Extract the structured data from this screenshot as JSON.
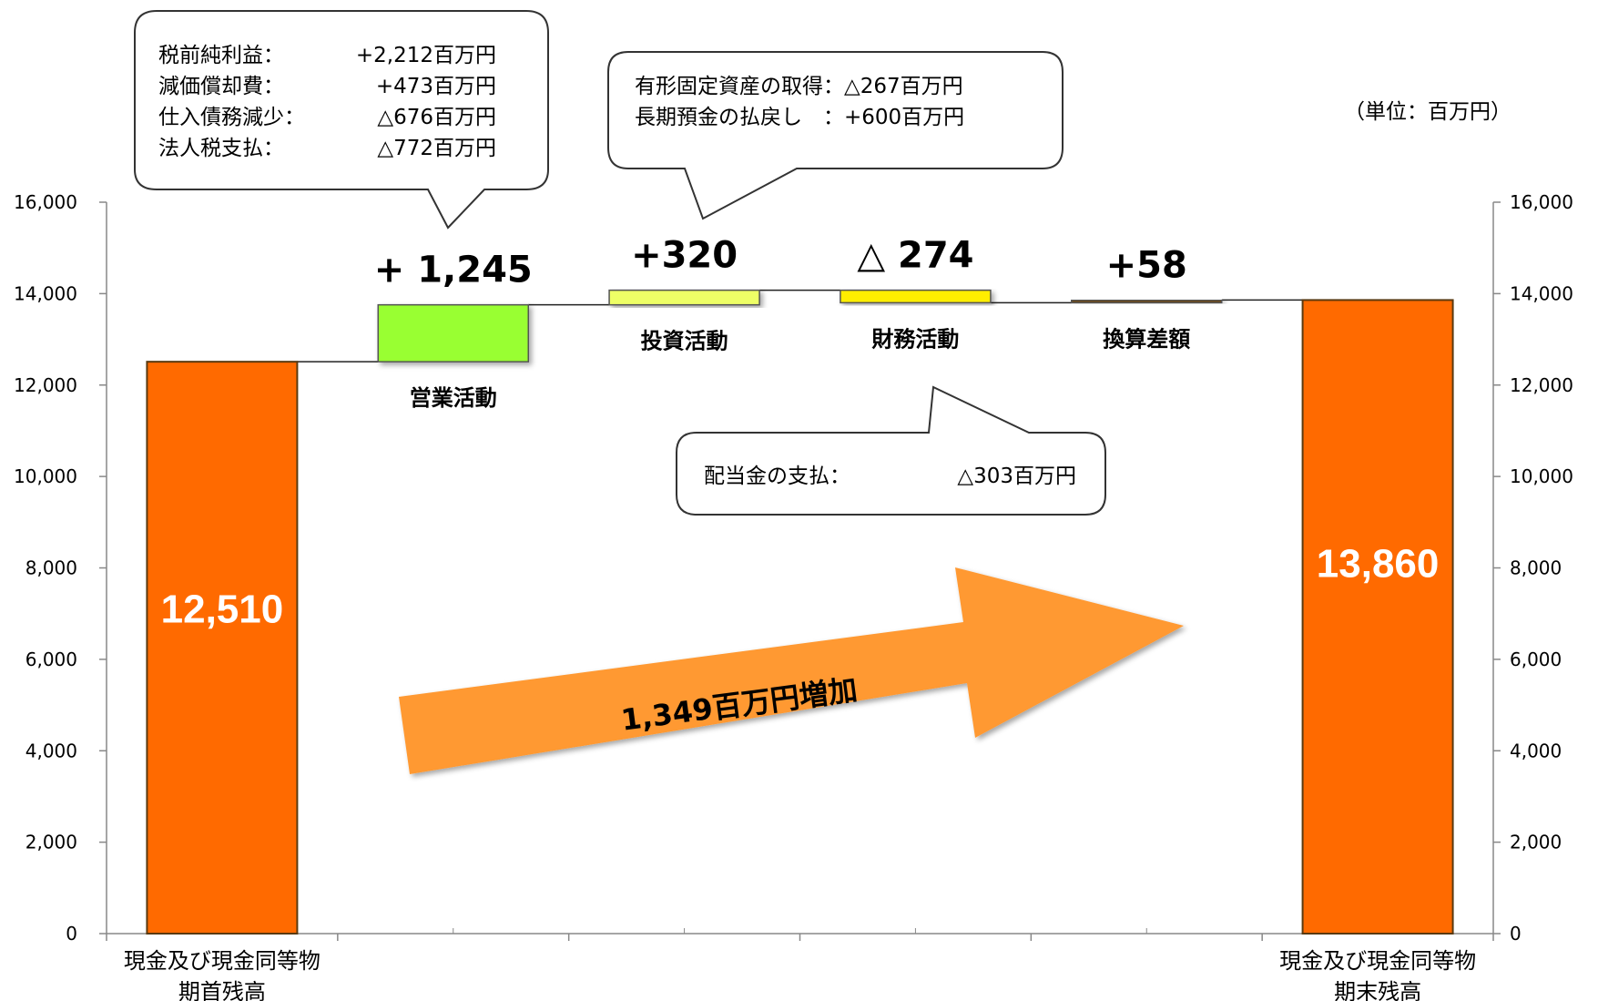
{
  "unit_label": "（単位：百万円）",
  "colors": {
    "start_end_bar": "#FF6A00",
    "start_end_border": "#5a3a10",
    "operating": "#99FF33",
    "investing": "#EEFF66",
    "financing": "#FFEE00",
    "fx": "#6a4a1a",
    "arrow": "#FF9933"
  },
  "chart_data": {
    "type": "bar",
    "subtype": "waterfall",
    "ylim": [
      0,
      16000
    ],
    "yticks": [
      "0",
      "2,000",
      "4,000",
      "6,000",
      "8,000",
      "10,000",
      "12,000",
      "14,000",
      "16,000"
    ],
    "grid": false,
    "secondary_axis": true,
    "categories": [
      "現金及び現金同等物期首残高",
      "営業活動",
      "投資活動",
      "財務活動",
      "換算差額",
      "現金及び現金同等物期末残高"
    ],
    "bars": [
      {
        "key": "start",
        "base": 0,
        "value": 12510,
        "label": "12,510",
        "cat_lines": [
          "現金及び現金同等物",
          "期首残高"
        ]
      },
      {
        "key": "operating",
        "base": 12510,
        "value": 1245,
        "label": "営業活動",
        "delta": "+ 1,245"
      },
      {
        "key": "investing",
        "base": 13755,
        "value": 320,
        "label": "投資活動",
        "delta": "+320"
      },
      {
        "key": "financing",
        "base": 13801,
        "value": 274,
        "label": "財務活動",
        "delta": "△ 274"
      },
      {
        "key": "fx",
        "base": 13802,
        "value": 58,
        "label": "換算差額",
        "delta": "+58"
      },
      {
        "key": "end",
        "base": 0,
        "value": 13860,
        "label": "13,860",
        "cat_lines": [
          "現金及び現金同等物",
          "期末残高"
        ]
      }
    ],
    "arrow_label": "1,349百万円増加"
  },
  "callouts": {
    "operating": {
      "lines": [
        [
          "税前純利益：",
          "+2,212百万円"
        ],
        [
          "減価償却費：",
          "+473百万円"
        ],
        [
          "仕入債務減少：",
          "△676百万円"
        ],
        [
          "法人税支払：",
          "△772百万円"
        ]
      ]
    },
    "investing": {
      "lines": [
        "有形固定資産の取得：△267百万円",
        "長期預金の払戻し　：+600百万円"
      ]
    },
    "financing": {
      "lines": [
        [
          "配当金の支払：",
          "△303百万円"
        ]
      ]
    }
  }
}
